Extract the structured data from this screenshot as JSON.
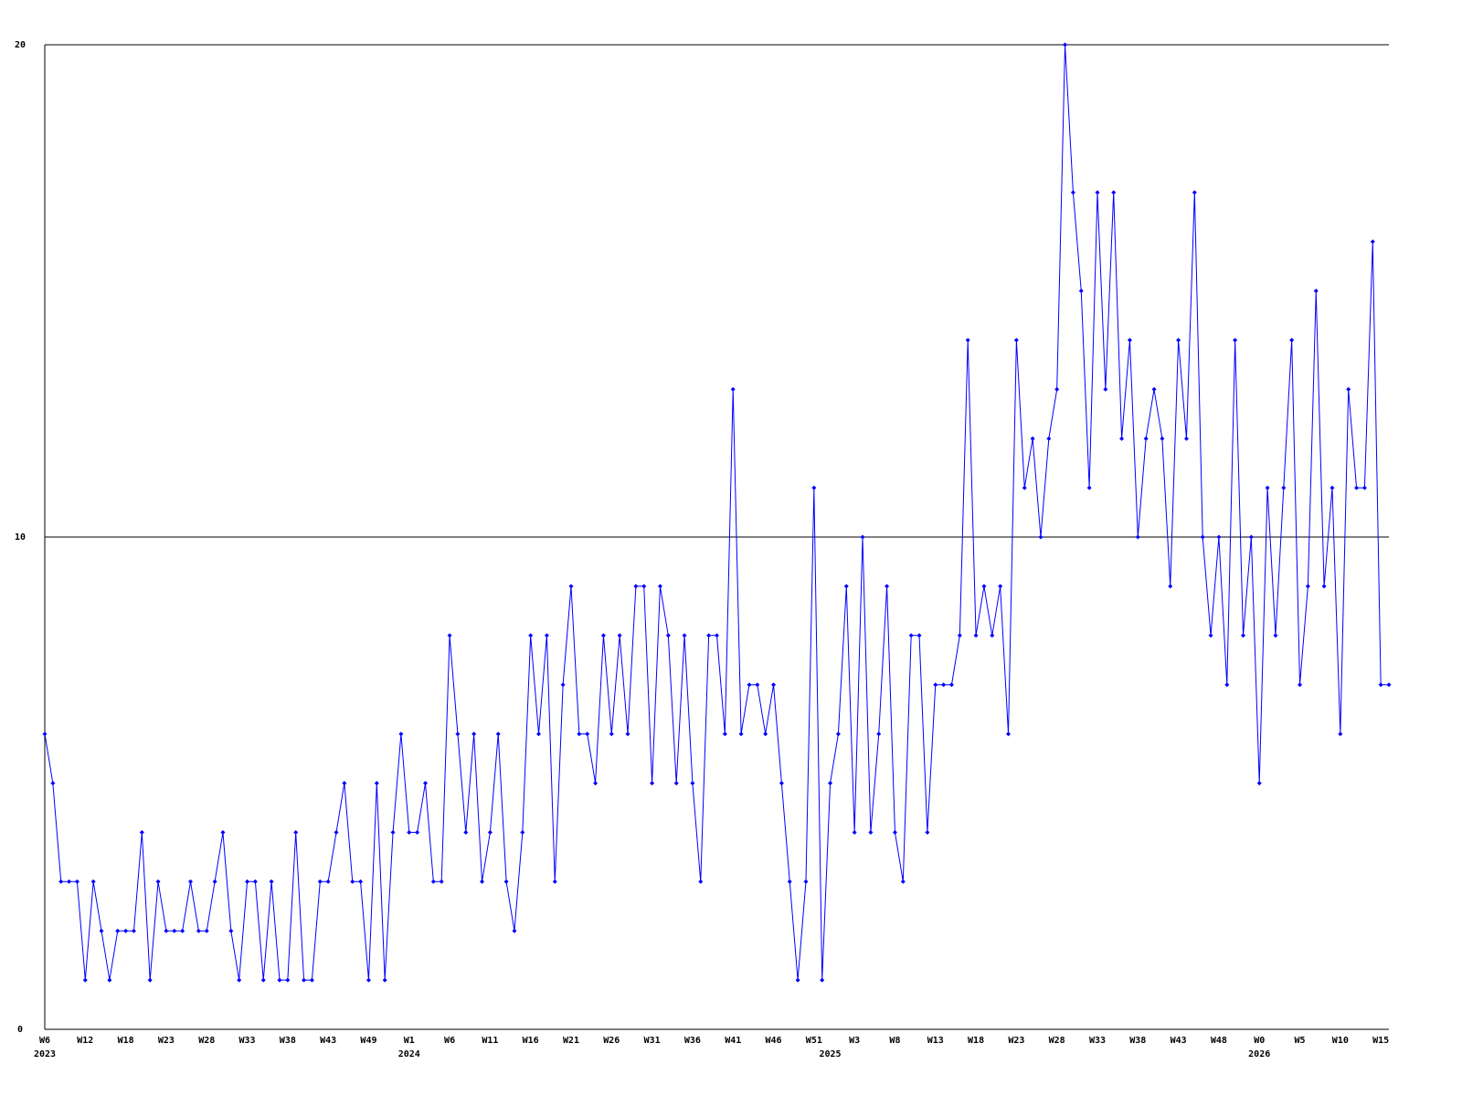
{
  "chart_data": {
    "type": "line",
    "color": "#0000ff",
    "grid": true,
    "ylim": [
      0,
      20
    ],
    "yticks": [
      0,
      10,
      20
    ],
    "categories": [
      "W6",
      null,
      null,
      null,
      null,
      "W12",
      null,
      null,
      null,
      null,
      "W18",
      null,
      null,
      null,
      null,
      "W23",
      null,
      null,
      null,
      null,
      "W28",
      null,
      null,
      null,
      null,
      "W33",
      null,
      null,
      null,
      null,
      "W38",
      null,
      null,
      null,
      null,
      "W43",
      null,
      null,
      null,
      null,
      "W49",
      null,
      null,
      null,
      null,
      "W1",
      null,
      null,
      null,
      null,
      "W6",
      null,
      null,
      null,
      null,
      "W11",
      null,
      null,
      null,
      null,
      "W16",
      null,
      null,
      null,
      null,
      "W21",
      null,
      null,
      null,
      null,
      "W26",
      null,
      null,
      null,
      null,
      "W31",
      null,
      null,
      null,
      null,
      "W36",
      null,
      null,
      null,
      null,
      "W41",
      null,
      null,
      null,
      null,
      "W46",
      null,
      null,
      null,
      null,
      "W51",
      null,
      null,
      null,
      null,
      "W3",
      null,
      null,
      null,
      null,
      "W8",
      null,
      null,
      null,
      null,
      "W13",
      null,
      null,
      null,
      null,
      "W18",
      null,
      null,
      null,
      null,
      "W23",
      null,
      null,
      null,
      null,
      "W28",
      null,
      null,
      null,
      null,
      "W33",
      null,
      null,
      null,
      null,
      "W38",
      null,
      null,
      null,
      null,
      "W43",
      null,
      null,
      null,
      null,
      "W48",
      null,
      null,
      null,
      null,
      "W0",
      null,
      null,
      null,
      null,
      "W5",
      null,
      null,
      null,
      null,
      "W10",
      null,
      null,
      null,
      null,
      "W15",
      null
    ],
    "years": [
      "2023",
      null,
      null,
      null,
      null,
      null,
      null,
      null,
      null,
      null,
      null,
      null,
      null,
      null,
      null,
      null,
      null,
      null,
      null,
      null,
      null,
      null,
      null,
      null,
      null,
      null,
      null,
      null,
      null,
      null,
      null,
      null,
      null,
      null,
      null,
      null,
      null,
      null,
      null,
      null,
      null,
      null,
      null,
      null,
      null,
      "2024",
      null,
      null,
      null,
      null,
      null,
      null,
      null,
      null,
      null,
      null,
      null,
      null,
      null,
      null,
      null,
      null,
      null,
      null,
      null,
      null,
      null,
      null,
      null,
      null,
      null,
      null,
      null,
      null,
      null,
      null,
      null,
      null,
      null,
      null,
      null,
      null,
      null,
      null,
      null,
      null,
      null,
      null,
      null,
      null,
      null,
      null,
      null,
      null,
      null,
      null,
      null,
      "2025",
      null,
      null,
      null,
      null,
      null,
      null,
      null,
      null,
      null,
      null,
      null,
      null,
      null,
      null,
      null,
      null,
      null,
      null,
      null,
      null,
      null,
      null,
      null,
      null,
      null,
      null,
      null,
      null,
      null,
      null,
      null,
      null,
      null,
      null,
      null,
      null,
      null,
      null,
      null,
      null,
      null,
      null,
      null,
      null,
      null,
      null,
      null,
      null,
      null,
      null,
      null,
      null,
      "2026",
      null,
      null,
      null,
      null,
      null,
      null,
      null,
      null,
      null,
      null,
      null,
      null,
      null,
      null,
      null,
      null
    ],
    "values": [
      6,
      5,
      3,
      3,
      3,
      1,
      3,
      2,
      1,
      2,
      2,
      2,
      4,
      1,
      3,
      2,
      2,
      2,
      3,
      2,
      2,
      3,
      4,
      2,
      1,
      3,
      3,
      1,
      3,
      1,
      1,
      4,
      1,
      1,
      3,
      3,
      4,
      5,
      3,
      3,
      1,
      5,
      1,
      4,
      6,
      4,
      4,
      5,
      3,
      3,
      8,
      6,
      4,
      6,
      3,
      4,
      6,
      3,
      2,
      4,
      8,
      6,
      8,
      3,
      7,
      9,
      6,
      6,
      5,
      8,
      6,
      8,
      6,
      9,
      9,
      5,
      9,
      8,
      5,
      8,
      5,
      3,
      8,
      8,
      6,
      13,
      6,
      7,
      7,
      6,
      7,
      5,
      3,
      1,
      3,
      11,
      1,
      5,
      6,
      9,
      4,
      10,
      4,
      6,
      9,
      4,
      3,
      8,
      8,
      4,
      7,
      7,
      7,
      8,
      14,
      8,
      9,
      8,
      9,
      6,
      14,
      11,
      12,
      10,
      12,
      13,
      20,
      17,
      15,
      11,
      17,
      13,
      17,
      12,
      14,
      10,
      12,
      13,
      12,
      9,
      14,
      12,
      17,
      10,
      8,
      10,
      7,
      14,
      8,
      10,
      5,
      11,
      8,
      11,
      14,
      7,
      9,
      15,
      9,
      11,
      6,
      13,
      11,
      11,
      16,
      7,
      7
    ]
  }
}
